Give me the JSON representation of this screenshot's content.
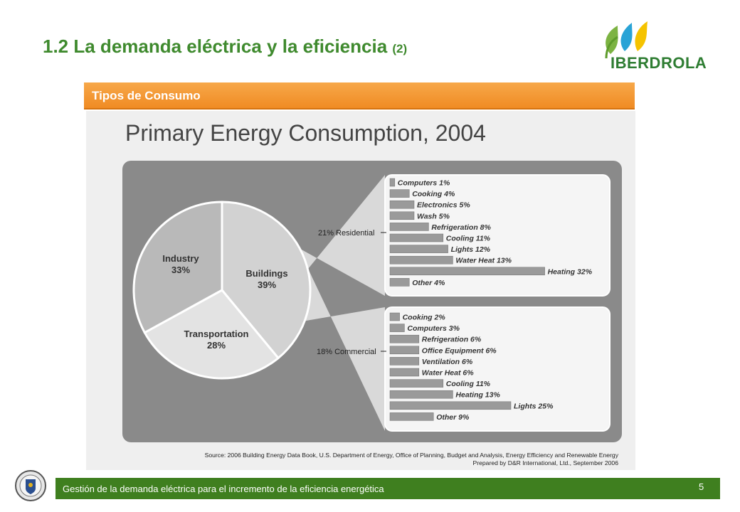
{
  "slide": {
    "title": "1.2 La demanda eléctrica y la eficiencia",
    "title_suffix": "(2)",
    "section_label": "Tipos de Consumo",
    "logo_text": "IBERDROLA",
    "footer_text": "Gestión de la demanda eléctrica para el incremento de la eficiencia energética",
    "page_number": "5"
  },
  "colors": {
    "title_green": "#3f8a2e",
    "section_orange": "#f08b23",
    "footer_green": "#3f7f1f"
  },
  "chart_data": [
    {
      "type": "pie",
      "title": "Primary Energy Consumption, 2004",
      "categories": [
        "Buildings",
        "Transportation",
        "Industry"
      ],
      "values": [
        39,
        28,
        33
      ],
      "labels": [
        "Buildings\n39%",
        "Transportation\n28%",
        "Industry\n33%"
      ],
      "source": "Source: 2006 Building Energy Data Book, U.S. Department of Energy, Office of Planning, Budget and Analysis, Energy Efficiency and Renewable Energy",
      "credit": "Prepared by D&R International, Ltd., September 2006"
    },
    {
      "type": "bar",
      "title": "21% Residential",
      "categories": [
        "Computers",
        "Cooking",
        "Electronics",
        "Wash",
        "Refrigeration",
        "Cooling",
        "Lights",
        "Water Heat",
        "Heating",
        "Other"
      ],
      "values": [
        1,
        4,
        5,
        5,
        8,
        11,
        12,
        13,
        32,
        4
      ],
      "labels": [
        "Computers 1%",
        "Cooking 4%",
        "Electronics 5%",
        "Wash 5%",
        "Refrigeration 8%",
        "Cooling 11%",
        "Lights 12%",
        "Water Heat 13%",
        "Heating 32%",
        "Other 4%"
      ]
    },
    {
      "type": "bar",
      "title": "18% Commercial",
      "categories": [
        "Cooking",
        "Computers",
        "Refrigeration",
        "Office Equipment",
        "Ventilation",
        "Water Heat",
        "Cooling",
        "Heating",
        "Lights",
        "Other"
      ],
      "values": [
        2,
        3,
        6,
        6,
        6,
        6,
        11,
        13,
        25,
        9
      ],
      "labels": [
        "Cooking 2%",
        "Computers 3%",
        "Refrigeration 6%",
        "Office Equipment 6%",
        "Ventilation 6%",
        "Water Heat 6%",
        "Cooling 11%",
        "Heating 13%",
        "Lights 25%",
        "Other 9%"
      ]
    }
  ]
}
